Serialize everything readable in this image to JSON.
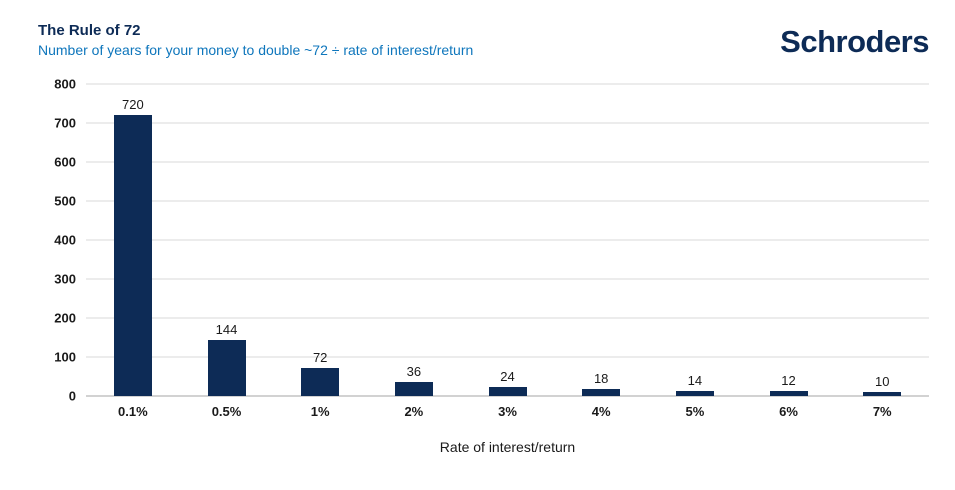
{
  "header": {
    "title": "The Rule of 72",
    "subtitle": "Number of years for your money to double ~72 ÷ rate of interest/return",
    "logo": "Schroders"
  },
  "chart_data": {
    "type": "bar",
    "categories": [
      "0.1%",
      "0.5%",
      "1%",
      "2%",
      "3%",
      "4%",
      "5%",
      "6%",
      "7%"
    ],
    "values": [
      720,
      144,
      72,
      36,
      24,
      18,
      14,
      12,
      10
    ],
    "title": "The Rule of 72",
    "subtitle": "Number of years for your money to double ~72 ÷ rate of interest/return",
    "xlabel": "Rate of interest/return",
    "ylabel": "",
    "ylim": [
      0,
      800
    ],
    "ytick_interval": 100,
    "grid": true,
    "legend": "none",
    "bar_color": "#0d2b56"
  },
  "colors": {
    "title_text": "#0d2b56",
    "subtitle_text": "#0e76bc",
    "bar": "#0d2b56",
    "gridline": "#d9d9d9",
    "axis_text": "#1a1a1a",
    "background": "#ffffff"
  }
}
